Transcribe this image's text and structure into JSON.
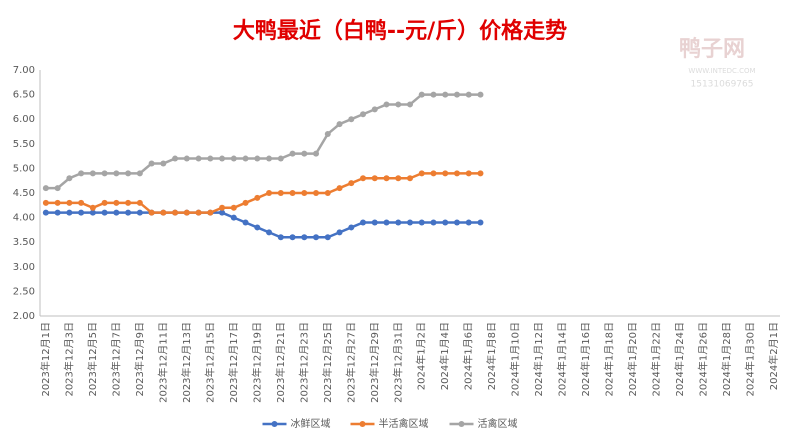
{
  "chart_data": {
    "type": "line",
    "title": "大鸭最近（白鸭--元/斤）价格走势",
    "watermark": {
      "name": "鸭子网",
      "url": "WWW.INTEDC.COM",
      "phone": "15131069765"
    },
    "categories": [
      "2023年12月1日",
      null,
      "2023年12月3日",
      null,
      "2023年12月5日",
      null,
      "2023年12月7日",
      null,
      "2023年12月9日",
      null,
      "2023年12月11日",
      null,
      "2023年12月13日",
      null,
      "2023年12月15日",
      null,
      "2023年12月17日",
      null,
      "2023年12月19日",
      null,
      "2023年12月21日",
      null,
      "2023年12月23日",
      null,
      "2023年12月25日",
      null,
      "2023年12月27日",
      null,
      "2023年12月29日",
      null,
      "2023年12月31日",
      null,
      "2024年1月2日",
      null,
      "2024年1月4日",
      null,
      "2024年1月6日",
      null,
      "2024年1月8日",
      null,
      "2024年1月10日",
      null,
      "2024年1月12日",
      null,
      "2024年1月14日",
      null,
      "2024年1月16日",
      null,
      "2024年1月18日",
      null,
      "2024年1月20日",
      null,
      "2024年1月22日",
      null,
      "2024年1月24日",
      null,
      "2024年1月26日",
      null,
      "2024年1月28日",
      null,
      "2024年1月30日",
      null,
      "2024年2月1日"
    ],
    "series": [
      {
        "name": "冰鲜区域",
        "color": "#4472c4",
        "values": [
          4.1,
          4.1,
          4.1,
          4.1,
          4.1,
          4.1,
          4.1,
          4.1,
          4.1,
          4.1,
          4.1,
          4.1,
          4.1,
          4.1,
          4.1,
          4.1,
          4.0,
          3.9,
          3.8,
          3.7,
          3.6,
          3.6,
          3.6,
          3.6,
          3.6,
          3.7,
          3.8,
          3.9,
          3.9,
          3.9,
          3.9,
          3.9,
          3.9,
          3.9,
          3.9,
          3.9,
          3.9,
          3.9,
          null,
          null,
          null,
          null,
          null,
          null,
          null,
          null,
          null,
          null,
          null,
          null,
          null,
          null,
          null,
          null,
          null,
          null,
          null,
          null,
          null,
          null,
          null,
          null,
          null
        ]
      },
      {
        "name": "半活禽区域",
        "color": "#ed7d31",
        "values": [
          4.3,
          4.3,
          4.3,
          4.3,
          4.2,
          4.3,
          4.3,
          4.3,
          4.3,
          4.1,
          4.1,
          4.1,
          4.1,
          4.1,
          4.1,
          4.2,
          4.2,
          4.3,
          4.4,
          4.5,
          4.5,
          4.5,
          4.5,
          4.5,
          4.5,
          4.6,
          4.7,
          4.8,
          4.8,
          4.8,
          4.8,
          4.8,
          4.9,
          4.9,
          4.9,
          4.9,
          4.9,
          4.9,
          null,
          null,
          null,
          null,
          null,
          null,
          null,
          null,
          null,
          null,
          null,
          null,
          null,
          null,
          null,
          null,
          null,
          null,
          null,
          null,
          null,
          null,
          null,
          null,
          null
        ]
      },
      {
        "name": "活禽区域",
        "color": "#a5a5a5",
        "values": [
          4.6,
          4.6,
          4.8,
          4.9,
          4.9,
          4.9,
          4.9,
          4.9,
          4.9,
          5.1,
          5.1,
          5.2,
          5.2,
          5.2,
          5.2,
          5.2,
          5.2,
          5.2,
          5.2,
          5.2,
          5.2,
          5.3,
          5.3,
          5.3,
          5.7,
          5.9,
          6.0,
          6.1,
          6.2,
          6.3,
          6.3,
          6.3,
          6.5,
          6.5,
          6.5,
          6.5,
          6.5,
          6.5,
          null,
          null,
          null,
          null,
          null,
          null,
          null,
          null,
          null,
          null,
          null,
          null,
          null,
          null,
          null,
          null,
          null,
          null,
          null,
          null,
          null,
          null,
          null,
          null,
          null
        ]
      }
    ],
    "ylim": [
      2,
      7
    ],
    "yticks": [
      {
        "value": 2,
        "label": "2.00"
      },
      {
        "value": 2.5,
        "label": "2.50"
      },
      {
        "value": 3,
        "label": "3.00"
      },
      {
        "value": 3.5,
        "label": "3.50"
      },
      {
        "value": 4,
        "label": "4.00"
      },
      {
        "value": 4.5,
        "label": "4.50"
      },
      {
        "value": 5,
        "label": "5.00"
      },
      {
        "value": 5.5,
        "label": "5.50"
      },
      {
        "value": 6,
        "label": "6.00"
      },
      {
        "value": 6.5,
        "label": "6.50"
      },
      {
        "value": 7,
        "label": "7.00"
      }
    ],
    "legend": "bottom"
  }
}
